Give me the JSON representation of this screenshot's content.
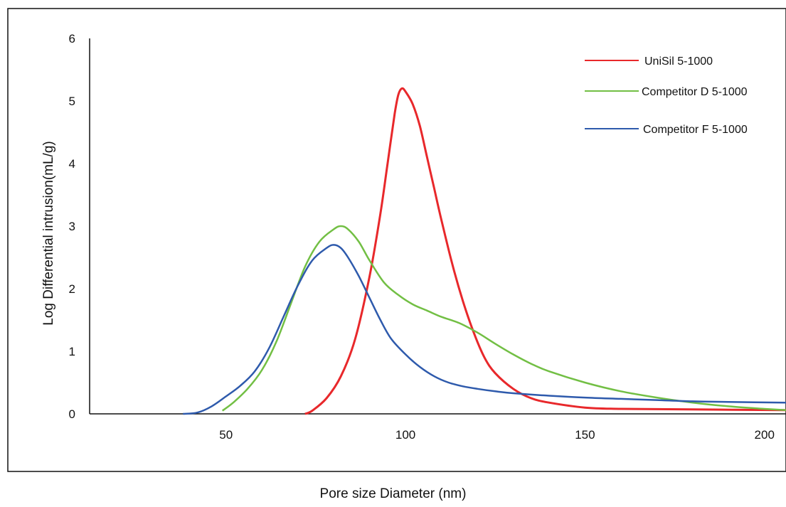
{
  "chart_data": {
    "type": "line",
    "xlabel": "Pore size Diameter (nm)",
    "ylabel": "Log Differential intrusion(mL/g)",
    "xlim": [
      12,
      206
    ],
    "ylim": [
      0,
      6
    ],
    "x_ticks": [
      50,
      100,
      150,
      200
    ],
    "y_ticks": [
      0,
      1,
      2,
      3,
      4,
      5,
      6
    ],
    "grid": false,
    "legend_position": "top-right",
    "series": [
      {
        "name": "UniSil 5-1000",
        "color": "#e8282b",
        "points": [
          [
            72,
            0
          ],
          [
            74,
            0.05
          ],
          [
            78,
            0.25
          ],
          [
            82,
            0.6
          ],
          [
            86,
            1.2
          ],
          [
            90,
            2.2
          ],
          [
            93,
            3.2
          ],
          [
            95,
            4.0
          ],
          [
            97,
            4.8
          ],
          [
            98,
            5.1
          ],
          [
            99,
            5.2
          ],
          [
            100,
            5.15
          ],
          [
            102,
            4.95
          ],
          [
            104,
            4.6
          ],
          [
            106,
            4.1
          ],
          [
            108,
            3.6
          ],
          [
            110,
            3.1
          ],
          [
            113,
            2.4
          ],
          [
            116,
            1.8
          ],
          [
            119,
            1.3
          ],
          [
            122,
            0.9
          ],
          [
            125,
            0.65
          ],
          [
            130,
            0.4
          ],
          [
            135,
            0.25
          ],
          [
            140,
            0.18
          ],
          [
            150,
            0.1
          ],
          [
            160,
            0.08
          ],
          [
            180,
            0.07
          ],
          [
            206,
            0.06
          ]
        ]
      },
      {
        "name": "Competitor D 5-1000",
        "color": "#72bf44",
        "points": [
          [
            49,
            0.05
          ],
          [
            52,
            0.18
          ],
          [
            56,
            0.4
          ],
          [
            60,
            0.7
          ],
          [
            64,
            1.15
          ],
          [
            68,
            1.75
          ],
          [
            72,
            2.35
          ],
          [
            76,
            2.75
          ],
          [
            80,
            2.95
          ],
          [
            82,
            3.0
          ],
          [
            84,
            2.95
          ],
          [
            87,
            2.75
          ],
          [
            90,
            2.45
          ],
          [
            94,
            2.1
          ],
          [
            98,
            1.9
          ],
          [
            102,
            1.75
          ],
          [
            106,
            1.65
          ],
          [
            110,
            1.55
          ],
          [
            115,
            1.45
          ],
          [
            120,
            1.3
          ],
          [
            125,
            1.12
          ],
          [
            130,
            0.95
          ],
          [
            135,
            0.8
          ],
          [
            140,
            0.68
          ],
          [
            150,
            0.5
          ],
          [
            160,
            0.36
          ],
          [
            170,
            0.26
          ],
          [
            180,
            0.18
          ],
          [
            190,
            0.12
          ],
          [
            200,
            0.08
          ],
          [
            206,
            0.06
          ]
        ]
      },
      {
        "name": "Competitor F 5-1000",
        "color": "#2e5aac",
        "points": [
          [
            38,
            0
          ],
          [
            42,
            0.02
          ],
          [
            46,
            0.12
          ],
          [
            50,
            0.28
          ],
          [
            54,
            0.45
          ],
          [
            58,
            0.68
          ],
          [
            62,
            1.05
          ],
          [
            66,
            1.55
          ],
          [
            70,
            2.05
          ],
          [
            74,
            2.45
          ],
          [
            78,
            2.65
          ],
          [
            80,
            2.7
          ],
          [
            82,
            2.65
          ],
          [
            84,
            2.5
          ],
          [
            87,
            2.2
          ],
          [
            90,
            1.85
          ],
          [
            93,
            1.5
          ],
          [
            96,
            1.2
          ],
          [
            100,
            0.95
          ],
          [
            104,
            0.75
          ],
          [
            108,
            0.6
          ],
          [
            112,
            0.5
          ],
          [
            116,
            0.44
          ],
          [
            120,
            0.4
          ],
          [
            125,
            0.36
          ],
          [
            130,
            0.33
          ],
          [
            140,
            0.29
          ],
          [
            150,
            0.26
          ],
          [
            160,
            0.24
          ],
          [
            170,
            0.22
          ],
          [
            180,
            0.2
          ],
          [
            190,
            0.19
          ],
          [
            206,
            0.18
          ]
        ]
      }
    ]
  }
}
